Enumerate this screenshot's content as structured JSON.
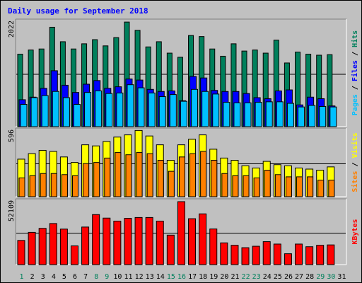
{
  "title": "Daily usage for September 2018",
  "colors": {
    "background": "#c0c0c0",
    "title_text": "#0000ff",
    "hits": "#00805c",
    "files": "#0000ff",
    "pages": "#00c0ff",
    "visits": "#ffff00",
    "sites": "#ff8000",
    "kbytes": "#ff0000",
    "weekday_label": "#000000",
    "weekend_label": "#00805c"
  },
  "chart_data": [
    {
      "type": "bar",
      "panel": "hits-files-pages",
      "categories": [
        "1",
        "2",
        "3",
        "4",
        "5",
        "6",
        "7",
        "8",
        "9",
        "10",
        "11",
        "12",
        "13",
        "14",
        "15",
        "16",
        "17",
        "18",
        "19",
        "20",
        "21",
        "22",
        "23",
        "24",
        "25",
        "26",
        "27",
        "28",
        "29",
        "30",
        "31"
      ],
      "ymax_label": "2022",
      "ymax": 2022,
      "legend": {
        "parts": [
          "Pages",
          "Files",
          "Hits"
        ],
        "separator": " / ",
        "position": "right"
      },
      "series": [
        {
          "name": "Hits",
          "values": [
            1400,
            1480,
            1500,
            1920,
            1640,
            1500,
            1600,
            1680,
            1560,
            1720,
            2020,
            1860,
            1540,
            1640,
            1420,
            1340,
            1760,
            1740,
            1500,
            1360,
            1600,
            1460,
            1480,
            1420,
            1670,
            1230,
            1440,
            1400,
            1380,
            1390,
            0
          ]
        },
        {
          "name": "Files",
          "values": [
            520,
            570,
            740,
            1080,
            800,
            660,
            820,
            890,
            740,
            770,
            920,
            900,
            720,
            680,
            690,
            500,
            970,
            940,
            700,
            680,
            680,
            640,
            560,
            540,
            690,
            710,
            420,
            570,
            540,
            400,
            0
          ]
        },
        {
          "name": "Pages",
          "values": [
            430,
            560,
            600,
            680,
            560,
            430,
            660,
            690,
            640,
            650,
            810,
            750,
            650,
            580,
            620,
            490,
            720,
            680,
            630,
            470,
            460,
            460,
            470,
            480,
            480,
            450,
            380,
            410,
            390,
            380,
            0
          ]
        }
      ],
      "weekend_days": [
        "1",
        "8",
        "9",
        "15",
        "16",
        "22",
        "23",
        "29",
        "30"
      ]
    },
    {
      "type": "bar",
      "panel": "visits-sites",
      "categories": [
        "1",
        "2",
        "3",
        "4",
        "5",
        "6",
        "7",
        "8",
        "9",
        "10",
        "11",
        "12",
        "13",
        "14",
        "15",
        "16",
        "17",
        "18",
        "19",
        "20",
        "21",
        "22",
        "23",
        "24",
        "25",
        "26",
        "27",
        "28",
        "29",
        "30",
        "31"
      ],
      "ymax_label": "596",
      "ymax": 596,
      "legend": {
        "parts": [
          "Sites",
          "Visits"
        ],
        "separator": " / ",
        "position": "right"
      },
      "series": [
        {
          "name": "Visits",
          "values": [
            340,
            390,
            420,
            410,
            360,
            310,
            470,
            460,
            500,
            540,
            560,
            600,
            550,
            470,
            330,
            470,
            520,
            560,
            430,
            350,
            330,
            280,
            260,
            320,
            290,
            280,
            260,
            250,
            240,
            270,
            0
          ]
        },
        {
          "name": "Sites",
          "values": [
            170,
            190,
            210,
            210,
            200,
            190,
            300,
            310,
            350,
            400,
            380,
            400,
            390,
            330,
            230,
            360,
            390,
            410,
            330,
            210,
            190,
            190,
            170,
            240,
            200,
            180,
            180,
            180,
            150,
            150,
            0
          ]
        }
      ]
    },
    {
      "type": "bar",
      "panel": "kbytes",
      "categories": [
        "1",
        "2",
        "3",
        "4",
        "5",
        "6",
        "7",
        "8",
        "9",
        "10",
        "11",
        "12",
        "13",
        "14",
        "15",
        "16",
        "17",
        "18",
        "19",
        "20",
        "21",
        "22",
        "23",
        "24",
        "25",
        "26",
        "27",
        "28",
        "29",
        "30",
        "31"
      ],
      "ymax_label": "52109",
      "ymax": 52109,
      "legend": {
        "parts": [
          "KBytes"
        ],
        "separator": "",
        "position": "right"
      },
      "series": [
        {
          "name": "KBytes",
          "values": [
            20000,
            26700,
            30000,
            34000,
            29400,
            15500,
            31100,
            41400,
            38500,
            36000,
            38300,
            39000,
            39000,
            36000,
            24400,
            52100,
            38000,
            42000,
            29500,
            18000,
            16000,
            14000,
            15200,
            19000,
            17000,
            9000,
            17000,
            14800,
            16000,
            16300,
            0
          ]
        }
      ]
    }
  ]
}
